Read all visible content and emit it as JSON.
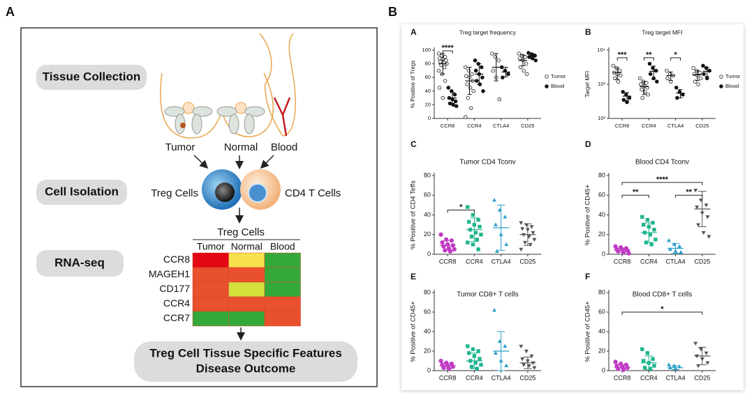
{
  "figure": {
    "label_a": "A",
    "label_b": "B"
  },
  "panel_a": {
    "steps": [
      "Tissue Collection",
      "Cell Isolation",
      "RNA-seq"
    ],
    "sources": [
      "Tumor",
      "Normal",
      "Blood"
    ],
    "cells": [
      "Treg Cells",
      "CD4 T Cells"
    ],
    "heatmap": {
      "title": "Treg Cells",
      "columns": [
        "Tumor",
        "Normal",
        "Blood"
      ],
      "rows": [
        "CCR8",
        "MAGEH1",
        "CD177",
        "CCR4",
        "CCR7"
      ],
      "colors": [
        [
          "#e30613",
          "#f7e14a",
          "#35a83a"
        ],
        [
          "#e8502e",
          "#e8502e",
          "#35a83a"
        ],
        [
          "#e8502e",
          "#d4e03c",
          "#35a83a"
        ],
        [
          "#e8502e",
          "#e8502e",
          "#e8502e"
        ],
        [
          "#35a83a",
          "#35a83a",
          "#e8502e"
        ]
      ]
    },
    "outcome": [
      "Treg Cell Tissue Specific Features",
      "Disease Outcome"
    ]
  },
  "chart_data": [
    {
      "type": "strip",
      "label": "A",
      "title": "Treg target frequency",
      "ylabel": "% Positive of Tregs",
      "categories": [
        "CCR8",
        "CCR4",
        "CTLA4",
        "CD25"
      ],
      "ylim": [
        0,
        100
      ],
      "yticks": [
        0,
        20,
        40,
        60,
        80,
        100
      ],
      "log": false,
      "legend": "right",
      "series": [
        {
          "name": "Tumor",
          "color": "#333333",
          "marker": "open-circle",
          "values": [
            [
              95,
              92,
              90,
              88,
              87,
              85,
              83,
              82,
              80,
              78,
              75,
              70,
              65,
              55,
              45,
              30
            ],
            [
              75,
              70,
              65,
              62,
              60,
              55,
              50,
              45,
              40,
              30,
              15,
              2
            ],
            [
              95,
              90,
              85,
              70,
              60,
              28
            ],
            [
              95,
              92,
              90,
              88,
              85,
              80,
              75,
              70,
              65
            ]
          ],
          "mean": [
            80,
            55,
            75,
            85
          ],
          "sd": [
            15,
            20,
            20,
            8
          ]
        },
        {
          "name": "Blood",
          "color": "#111111",
          "marker": "circle",
          "values": [
            [
              45,
              40,
              35,
              30,
              28,
              25,
              22,
              20,
              18
            ],
            [
              85,
              80,
              75,
              70,
              65,
              60,
              55,
              50,
              40
            ],
            [
              75,
              70,
              65,
              60
            ],
            [
              96,
              94,
              92,
              90,
              88,
              85
            ]
          ],
          "mean": [
            30,
            65,
            68,
            91
          ],
          "sd": [
            8,
            15,
            7,
            4
          ]
        }
      ],
      "annotations": [
        {
          "text": "****",
          "from": 0,
          "to": 0,
          "y": 99
        }
      ]
    },
    {
      "type": "strip",
      "label": "B",
      "title": "Treg target MFI",
      "ylabel": "Target MFI",
      "categories": [
        "CCR8",
        "CCR4",
        "CTLA4",
        "CD25"
      ],
      "ylim": [
        100,
        10000
      ],
      "log": true,
      "legend": "right",
      "yticks": [
        {
          "value": 100,
          "label": "10²"
        },
        {
          "value": 1000,
          "label": "10³"
        },
        {
          "value": 10000,
          "label": "10⁴"
        }
      ],
      "series": [
        {
          "name": "Tumor",
          "color": "#333333",
          "marker": "open-circle",
          "values": [
            [
              3500,
              3000,
              2500,
              2200,
              2000,
              1800,
              1500,
              1200
            ],
            [
              1500,
              1200,
              1100,
              1000,
              900,
              800,
              700,
              600,
              500,
              400
            ],
            [
              2500,
              2000,
              1800,
              1500,
              1200
            ],
            [
              3000,
              2500,
              2200,
              2000,
              1800,
              1500,
              1200,
              1000
            ]
          ],
          "mean": [
            2200,
            850,
            1800,
            1900
          ],
          "sd": [
            800,
            350,
            500,
            600
          ]
        },
        {
          "name": "Blood",
          "color": "#111111",
          "marker": "circle",
          "values": [
            [
              600,
              500,
              400,
              350,
              300
            ],
            [
              4000,
              3000,
              2500,
              2000,
              1500,
              1200
            ],
            [
              800,
              600,
              500,
              400
            ],
            [
              3500,
              3000,
              2500,
              2000,
              1500
            ]
          ],
          "mean": [
            450,
            2400,
            550,
            2400
          ],
          "sd": [
            120,
            1000,
            150,
            700
          ]
        }
      ],
      "annotations": [
        {
          "text": "***",
          "from": 0,
          "to": 0,
          "y": 6000
        },
        {
          "text": "**",
          "from": 1,
          "to": 1,
          "y": 6000
        },
        {
          "text": "*",
          "from": 2,
          "to": 2,
          "y": 6000
        }
      ]
    },
    {
      "type": "strip",
      "label": "C",
      "title": "Tumor CD4 Tconv",
      "ylabel": "% Positive of CD4 Teffs",
      "categories": [
        "CCR8",
        "CCR4",
        "CTLA4",
        "CD25"
      ],
      "ylim": [
        0,
        80
      ],
      "yticks": [
        0,
        20,
        40,
        60,
        80
      ],
      "log": false,
      "colors": [
        "#c03cc4",
        "#1fb58f",
        "#2a9fc9",
        "#555555"
      ],
      "markers": [
        "circle",
        "square",
        "triangle",
        "triangle-down"
      ],
      "values": [
        [
          20,
          15,
          14,
          12,
          10,
          9,
          8,
          6,
          5,
          4,
          3
        ],
        [
          48,
          40,
          35,
          33,
          30,
          28,
          25,
          22,
          20,
          18,
          15,
          12,
          10,
          5
        ],
        [
          55,
          45,
          38,
          30,
          20,
          10,
          3
        ],
        [
          32,
          30,
          28,
          26,
          25,
          22,
          20,
          18,
          15,
          12,
          10,
          5
        ]
      ],
      "mean": [
        9,
        25,
        27,
        20
      ],
      "sd": [
        5,
        12,
        23,
        11
      ],
      "annotations": [
        {
          "text": "*",
          "from": 0,
          "to": 1,
          "y": 45
        }
      ]
    },
    {
      "type": "strip",
      "label": "D",
      "title": "Blood CD4 Tconv",
      "ylabel": "% Positive of CD45+",
      "categories": [
        "CCR8",
        "CCR4",
        "CTLA4",
        "CD25"
      ],
      "ylim": [
        0,
        80
      ],
      "yticks": [
        0,
        20,
        40,
        60,
        80
      ],
      "log": false,
      "colors": [
        "#c03cc4",
        "#1fb58f",
        "#2a9fc9",
        "#555555"
      ],
      "markers": [
        "circle",
        "square",
        "triangle",
        "triangle-down"
      ],
      "values": [
        [
          8,
          7,
          6,
          5,
          5,
          4,
          3,
          2,
          1
        ],
        [
          38,
          35,
          32,
          30,
          28,
          25,
          22,
          20,
          15,
          12,
          10
        ],
        [
          14,
          10,
          8,
          5,
          3,
          2
        ],
        [
          65,
          55,
          50,
          48,
          42,
          38,
          30,
          22,
          18
        ]
      ],
      "mean": [
        4,
        22,
        6,
        46
      ],
      "sd": [
        2,
        10,
        5,
        18
      ],
      "annotations": [
        {
          "text": "**",
          "from": 0,
          "to": 1,
          "y": 60
        },
        {
          "text": "****",
          "from": 0,
          "to": 3,
          "y": 73
        },
        {
          "text": "**",
          "from": 2,
          "to": 3,
          "y": 60
        }
      ]
    },
    {
      "type": "strip",
      "label": "E",
      "title": "Tumor CD8+ T cells",
      "ylabel": "% Positive of CD45+",
      "categories": [
        "CCR8",
        "CCR4",
        "CTLA4",
        "CD25"
      ],
      "ylim": [
        0,
        80
      ],
      "yticks": [
        0,
        20,
        40,
        60,
        80
      ],
      "log": false,
      "colors": [
        "#c03cc4",
        "#1fb58f",
        "#2a9fc9",
        "#555555"
      ],
      "markers": [
        "circle",
        "square",
        "triangle",
        "triangle-down"
      ],
      "values": [
        [
          10,
          8,
          7,
          6,
          5,
          4,
          3,
          2
        ],
        [
          25,
          22,
          20,
          18,
          15,
          12,
          10,
          8,
          6,
          4,
          2
        ],
        [
          62,
          30,
          25,
          18,
          10,
          5
        ],
        [
          25,
          20,
          15,
          12,
          10,
          8,
          6,
          5,
          3
        ]
      ],
      "mean": [
        5,
        10,
        20,
        8
      ],
      "sd": [
        3,
        8,
        20,
        6
      ]
    },
    {
      "type": "strip",
      "label": "F",
      "title": "Blood CD8+ T cells",
      "ylabel": "% Positive of CD45+",
      "categories": [
        "CCR8",
        "CCR4",
        "CTLA4",
        "CD25"
      ],
      "ylim": [
        0,
        80
      ],
      "yticks": [
        0,
        20,
        40,
        60,
        80
      ],
      "log": false,
      "colors": [
        "#c03cc4",
        "#1fb58f",
        "#2a9fc9",
        "#555555"
      ],
      "markers": [
        "circle",
        "square",
        "triangle",
        "triangle-down"
      ],
      "values": [
        [
          9,
          7,
          6,
          5,
          4,
          3,
          2,
          1
        ],
        [
          22,
          18,
          12,
          10,
          8,
          5,
          3,
          2
        ],
        [
          6,
          5,
          4,
          3,
          2
        ],
        [
          28,
          22,
          18,
          15,
          12,
          8,
          5
        ]
      ],
      "mean": [
        3,
        8,
        3,
        15
      ],
      "sd": [
        3,
        7,
        2,
        9
      ],
      "annotations": [
        {
          "text": "*",
          "from": 0,
          "to": 3,
          "y": 60
        }
      ]
    }
  ]
}
